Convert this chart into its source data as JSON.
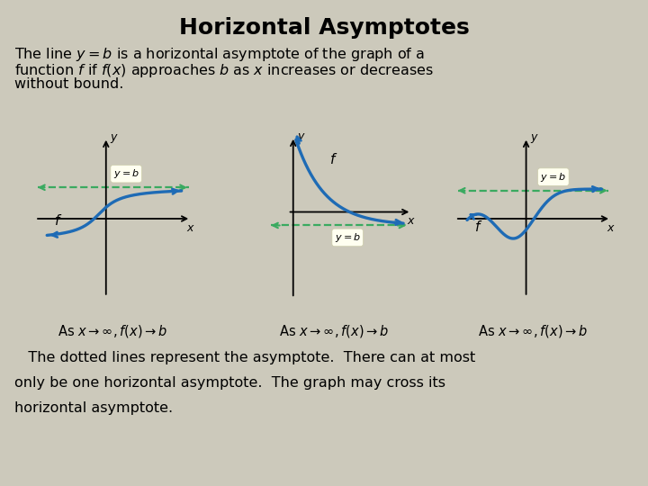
{
  "title": "Horizontal Asymptotes",
  "title_fontsize": 18,
  "title_fontweight": "bold",
  "bg_color": "#ccc9bb",
  "panel_bg": "#c8dff0",
  "text1_line1": "The line $y = b$ is a horizontal asymptote of the graph of a",
  "text1_line2": "function $f$ if $f(x)$ approaches $b$ as $x$ increases or decreases",
  "text1_line3": "without bound.",
  "text2_line1": "   The dotted lines represent the asymptote.  There can at most",
  "text2_line2": "only be one horizontal asymptote.  The graph may cross its",
  "text2_line3": "horizontal asymptote.",
  "caption1": "As $x \\rightarrow \\infty, f(x) \\rightarrow b$",
  "caption2": "As $x \\rightarrow \\infty, f(x) \\rightarrow b$",
  "caption3": "As $x \\rightarrow \\infty, f(x) \\rightarrow b$",
  "curve_color": "#1e6bb5",
  "asymptote_color": "#3aaa60",
  "text_fontsize": 11.5,
  "caption_fontsize": 10.5,
  "yb_label_bg": "#fffff0",
  "yb_label_fontsize": 8
}
